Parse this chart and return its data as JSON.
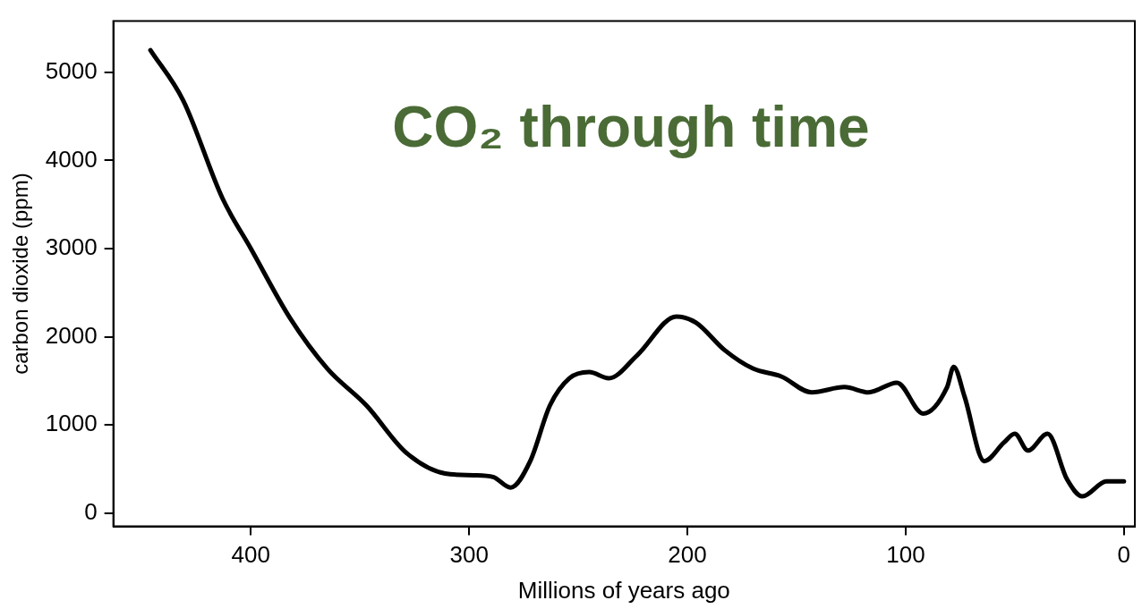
{
  "chart_data": {
    "type": "line",
    "title": "CO₂ through time",
    "xlabel": "Millions of years ago",
    "ylabel": "carbon dioxide (ppm)",
    "series": [
      {
        "color": "#000000",
        "x": [
          446,
          431,
          413,
          400,
          382,
          365,
          347,
          329,
          311,
          298,
          289,
          281,
          272,
          263,
          254,
          245,
          236,
          223,
          205,
          196,
          183,
          170,
          157,
          143,
          128,
          117,
          104,
          92,
          81,
          78,
          73,
          64,
          55,
          50,
          44,
          35,
          26,
          19,
          8,
          0
        ],
        "values": [
          5250,
          4680,
          3570,
          3000,
          2210,
          1640,
          1220,
          690,
          450,
          430,
          410,
          290,
          590,
          1220,
          1530,
          1600,
          1530,
          1790,
          2230,
          2160,
          1850,
          1640,
          1550,
          1370,
          1430,
          1370,
          1480,
          1130,
          1430,
          1660,
          1320,
          590,
          800,
          900,
          710,
          900,
          380,
          190,
          360,
          360
        ]
      }
    ],
    "xlim": [
      463,
      -5
    ],
    "xticks": [
      400,
      300,
      200,
      100,
      0
    ],
    "ylim": [
      -150,
      5580
    ],
    "yticks": [
      0,
      1000,
      2000,
      3000,
      4000,
      5000
    ],
    "grid": false,
    "legend": false,
    "marker": "none",
    "line_style": "solid"
  }
}
